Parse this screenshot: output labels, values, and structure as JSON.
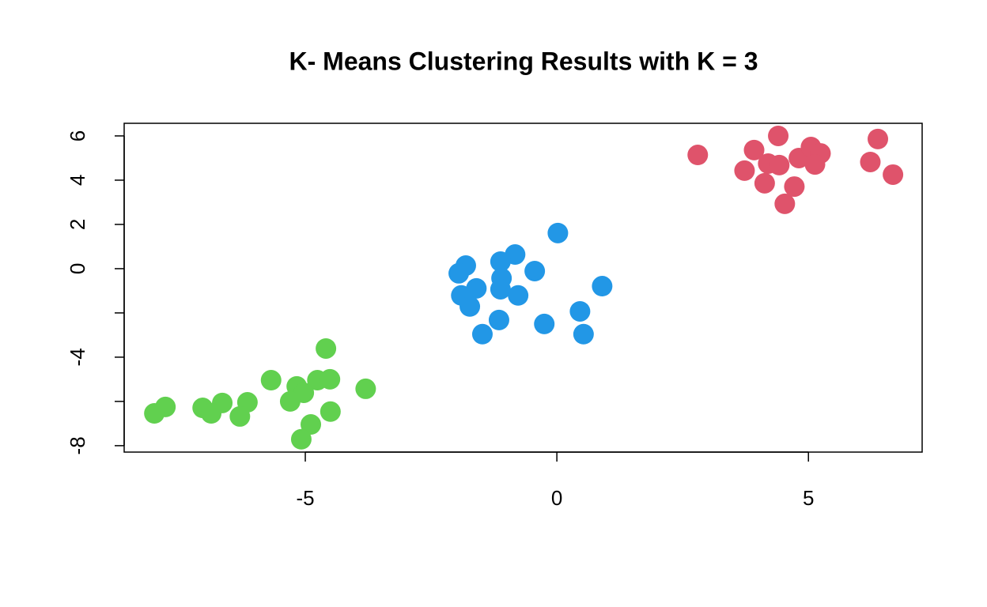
{
  "chart_data": {
    "type": "scatter",
    "title": "K- Means Clustering Results with K = 3",
    "xlim": [
      -8.6,
      7.26
    ],
    "ylim": [
      -8.29,
      6.57
    ],
    "xticks": [
      -5,
      0,
      5
    ],
    "yticks": [
      {
        "value": -8,
        "label": "-8"
      },
      {
        "value": -6,
        "label": null
      },
      {
        "value": -4,
        "label": "-4"
      },
      {
        "value": -2,
        "label": null
      },
      0,
      2,
      4,
      6
    ],
    "series": [
      {
        "color": "#DF536B",
        "x": [
          2.8,
          3.92,
          3.73,
          4.4,
          4.2,
          4.13,
          4.42,
          4.72,
          4.53,
          4.81,
          5.05,
          5.24,
          5.13,
          6.38,
          6.23,
          6.68
        ],
        "y": [
          5.14,
          5.36,
          4.43,
          6.0,
          4.75,
          3.86,
          4.68,
          3.71,
          2.93,
          5.0,
          5.5,
          5.21,
          4.71,
          5.86,
          4.82,
          4.25
        ]
      },
      {
        "color": "#2297E6",
        "x": [
          0.02,
          -0.83,
          -1.12,
          -1.81,
          -1.95,
          -0.44,
          -1.1,
          -1.6,
          -1.12,
          -0.77,
          -1.9,
          -1.73,
          0.9,
          0.46,
          -1.15,
          -0.25,
          -1.48,
          0.53
        ],
        "y": [
          1.61,
          0.64,
          0.32,
          0.14,
          -0.21,
          -0.11,
          -0.43,
          -0.89,
          -0.93,
          -1.21,
          -1.21,
          -1.71,
          -0.79,
          -1.93,
          -2.32,
          -2.5,
          -2.96,
          -2.96
        ]
      },
      {
        "color": "#61D04F",
        "x": [
          -4.59,
          -5.68,
          -5.17,
          -4.76,
          -4.51,
          -3.8,
          -5.03,
          -5.3,
          -6.15,
          -6.65,
          -7.78,
          -7.04,
          -8.0,
          -6.87,
          -6.3,
          -4.5,
          -4.89,
          -5.08
        ],
        "y": [
          -3.61,
          -5.04,
          -5.32,
          -5.04,
          -5.0,
          -5.43,
          -5.61,
          -6.0,
          -6.04,
          -6.07,
          -6.25,
          -6.29,
          -6.54,
          -6.54,
          -6.68,
          -6.46,
          -7.04,
          -7.71
        ]
      }
    ]
  }
}
